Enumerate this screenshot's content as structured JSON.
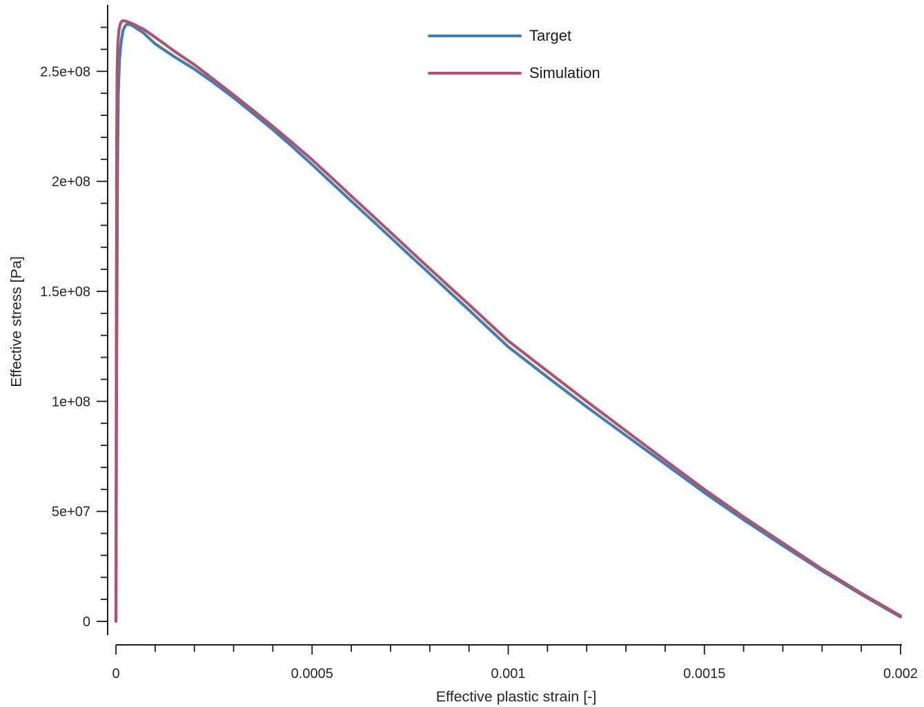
{
  "figure": {
    "background": "#ffffff",
    "axis_color": "#1c1c1c",
    "tick_label_color": "#262626",
    "text_color": "#1a1a1a"
  },
  "legend": {
    "items": [
      {
        "label": "Target",
        "color": "#3f7fb3"
      },
      {
        "label": "Simulation",
        "color": "#b1536e"
      }
    ]
  },
  "chart_data": {
    "type": "line",
    "title": "",
    "xlabel": "Effective plastic strain [-]",
    "ylabel": "Effective stress [Pa]",
    "xlim": [
      0,
      0.002
    ],
    "ylim": [
      0,
      280000000
    ],
    "grid": false,
    "legend_position": "top-center",
    "x_ticks": {
      "major": [
        0,
        0.0005,
        0.001,
        0.0015,
        0.002
      ],
      "labels": [
        "0",
        "0.0005",
        "0.001",
        "0.0015",
        "0.002"
      ],
      "minor_step": 0.0001
    },
    "y_ticks": {
      "major": [
        0,
        50000000,
        100000000,
        150000000,
        200000000,
        250000000
      ],
      "labels": [
        "0",
        "5e+07",
        "1e+08",
        "1.5e+08",
        "2e+08",
        "2.5e+08"
      ],
      "minor_step": 10000000,
      "minor_max": 270000000
    },
    "series": [
      {
        "name": "Target",
        "color": "#3f7fb3",
        "points": [
          [
            0,
            0
          ],
          [
            2e-06,
            120000000
          ],
          [
            4e-06,
            205000000
          ],
          [
            6e-06,
            240000000
          ],
          [
            9e-06,
            255000000
          ],
          [
            1.3e-05,
            263000000
          ],
          [
            1.8e-05,
            268500000
          ],
          [
            2.3e-05,
            270500000
          ],
          [
            2.8e-05,
            271500000
          ],
          [
            4e-05,
            271000000
          ],
          [
            7e-05,
            267500000
          ],
          [
            0.0001,
            262500000
          ],
          [
            0.00015,
            256500000
          ],
          [
            0.0002,
            251000000
          ],
          [
            0.00025,
            244700000
          ],
          [
            0.0003,
            238000000
          ],
          [
            0.00035,
            230800000
          ],
          [
            0.0004,
            223500000
          ],
          [
            0.00045,
            215700000
          ],
          [
            0.0005,
            207600000
          ],
          [
            0.00055,
            199300000
          ],
          [
            0.0006,
            191000000
          ],
          [
            0.00065,
            182800000
          ],
          [
            0.0007,
            174500000
          ],
          [
            0.00075,
            166200000
          ],
          [
            0.0008,
            158000000
          ],
          [
            0.00085,
            149700000
          ],
          [
            0.0009,
            141500000
          ],
          [
            0.00095,
            133100000
          ],
          [
            0.001,
            124800000
          ],
          [
            0.0011,
            111000000
          ],
          [
            0.0012,
            97500000
          ],
          [
            0.0013,
            84500000
          ],
          [
            0.0014,
            71500000
          ],
          [
            0.0015,
            58500000
          ],
          [
            0.0016,
            46200000
          ],
          [
            0.0017,
            34500000
          ],
          [
            0.0018,
            23000000
          ],
          [
            0.0019,
            12200000
          ],
          [
            0.002,
            2000000
          ]
        ]
      },
      {
        "name": "Simulation",
        "color": "#b1536e",
        "points": [
          [
            0,
            0
          ],
          [
            1e-06,
            130000000
          ],
          [
            2e-06,
            220000000
          ],
          [
            3e-06,
            250000000
          ],
          [
            5e-06,
            263000000
          ],
          [
            8e-06,
            269000000
          ],
          [
            1.1e-05,
            271500000
          ],
          [
            1.4e-05,
            272600000
          ],
          [
            1.8e-05,
            273000000
          ],
          [
            2.5e-05,
            272800000
          ],
          [
            4e-05,
            271800000
          ],
          [
            7e-05,
            269200000
          ],
          [
            0.0001,
            265500000
          ],
          [
            0.00015,
            259000000
          ],
          [
            0.0002,
            253000000
          ],
          [
            0.00025,
            246200000
          ],
          [
            0.0003,
            239300000
          ],
          [
            0.00035,
            232200000
          ],
          [
            0.0004,
            225000000
          ],
          [
            0.00045,
            217500000
          ],
          [
            0.0005,
            209800000
          ],
          [
            0.00055,
            201600000
          ],
          [
            0.0006,
            193300000
          ],
          [
            0.00065,
            185100000
          ],
          [
            0.0007,
            176800000
          ],
          [
            0.00075,
            168500000
          ],
          [
            0.0008,
            160300000
          ],
          [
            0.00085,
            152100000
          ],
          [
            0.0009,
            144000000
          ],
          [
            0.00095,
            135700000
          ],
          [
            0.001,
            127500000
          ],
          [
            0.0011,
            113700000
          ],
          [
            0.0012,
            100000000
          ],
          [
            0.0013,
            86600000
          ],
          [
            0.0014,
            73200000
          ],
          [
            0.0015,
            60000000
          ],
          [
            0.0016,
            47500000
          ],
          [
            0.0017,
            35600000
          ],
          [
            0.0018,
            23800000
          ],
          [
            0.0019,
            12800000
          ],
          [
            0.002,
            2500000
          ]
        ]
      }
    ]
  }
}
